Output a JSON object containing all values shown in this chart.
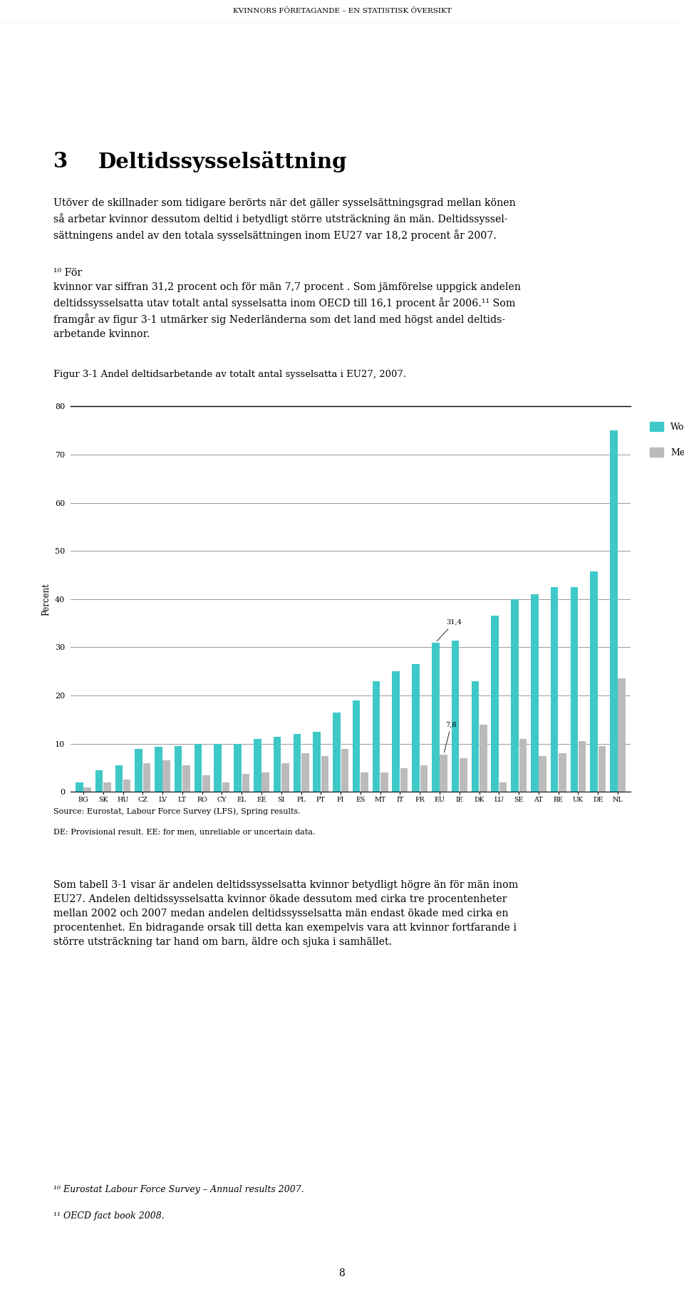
{
  "title": "KVINNORS FÖRETAGANDE – EN STATISTISK ÖVERSIKT",
  "figure_title": "Figur 3-1 Andel deltidsarbetande av totalt antal sysselsatta i EU27, 2007.",
  "ylabel": "Percent",
  "ylim": [
    0,
    80
  ],
  "yticks": [
    0,
    10,
    20,
    30,
    40,
    50,
    60,
    70,
    80
  ],
  "source_line1": "Source: Eurostat, Labour Force Survey (LFS), Spring results.",
  "source_line2": "DE: Provisional result. EE: for men, unreliable or uncertain data.",
  "countries": [
    "BG",
    "SK",
    "HU",
    "CZ",
    "LV",
    "LT",
    "RO",
    "CY",
    "EL",
    "EE",
    "SI",
    "PL",
    "PT",
    "FI",
    "ES",
    "MT",
    "IT",
    "FR",
    "EU",
    "IE",
    "DK",
    "LU",
    "SE",
    "AT",
    "BE",
    "UK",
    "DE",
    "NL"
  ],
  "women": [
    2.0,
    4.5,
    5.5,
    9.0,
    9.3,
    9.5,
    10.0,
    10.0,
    10.0,
    11.0,
    11.5,
    12.0,
    12.5,
    16.5,
    19.0,
    23.0,
    25.0,
    26.5,
    31.0,
    31.4,
    23.0,
    36.5,
    40.0,
    41.0,
    42.5,
    42.5,
    45.8,
    75.0
  ],
  "men": [
    1.0,
    2.0,
    2.5,
    6.0,
    6.5,
    5.5,
    3.5,
    2.0,
    3.8,
    4.0,
    6.0,
    8.0,
    7.5,
    9.0,
    4.0,
    4.0,
    5.0,
    5.5,
    7.8,
    7.0,
    14.0,
    2.0,
    11.0,
    7.5,
    8.0,
    10.5,
    9.5,
    23.5
  ],
  "women_color": "#3EC8C8",
  "men_color": "#BBBBBB",
  "page_number": "8"
}
